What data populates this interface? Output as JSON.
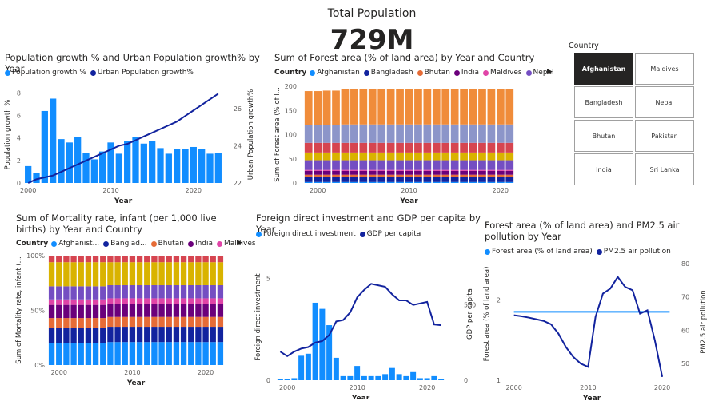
{
  "card": {
    "title": "Total Population",
    "value": "729M"
  },
  "slicer": {
    "title": "Country",
    "items": [
      "Afghanistan",
      "Maldives",
      "Bangladesh",
      "Nepal",
      "Bhutan",
      "Pakistan",
      "India",
      "Sri Lanka"
    ],
    "selected": "Afghanistan"
  },
  "colors": {
    "blue": "#118dff",
    "navy": "#12239e",
    "orange": "#e66c37",
    "purple": "#6b007b",
    "pink": "#e044a7",
    "violet": "#744ec2",
    "yellow": "#d9b300",
    "red": "#d64550"
  },
  "visual1": {
    "title": "Population growth % and Urban Population growth% by Year",
    "legend": [
      "Population growth %",
      "Urban Population growth%"
    ]
  },
  "visual2": {
    "title": "Sum of Forest area (% of land area) by Year and Country",
    "legend_title": "Country",
    "legend": [
      "Afghanistan",
      "Bangladesh",
      "Bhutan",
      "India",
      "Maldives",
      "Nepal"
    ]
  },
  "visual3": {
    "title": "Sum of Mortality rate, infant (per 1,000 live births) by Year and Country",
    "legend_title": "Country",
    "legend": [
      "Afghanist...",
      "Banglad...",
      "Bhutan",
      "India",
      "Maldives"
    ]
  },
  "visual4": {
    "title": "Foreign direct investment and GDP per capita by Year",
    "legend": [
      "Foreign direct investment",
      "GDP per capita"
    ]
  },
  "visual5": {
    "title": "Forest area (% of land area) and PM2.5 air pollution by Year",
    "legend": [
      "Forest area (% of land area)",
      "PM2.5 air pollution"
    ]
  },
  "chart_data": [
    {
      "type": "bar",
      "title": "Population growth % and Urban Population growth% by Year",
      "xlabel": "Year",
      "ylabel": "Population growth %",
      "y2label": "Urban Population growth%",
      "ylim": [
        0,
        8.6
      ],
      "y2lim": [
        22,
        27.2
      ],
      "yticks": [
        0,
        2,
        4,
        6,
        8
      ],
      "y2ticks": [
        22,
        24,
        26
      ],
      "xticks": [
        2000,
        2010,
        2020
      ],
      "x": [
        2000,
        2001,
        2002,
        2003,
        2004,
        2005,
        2006,
        2007,
        2008,
        2009,
        2010,
        2011,
        2012,
        2013,
        2014,
        2015,
        2016,
        2017,
        2018,
        2019,
        2020,
        2021,
        2022,
        2023
      ],
      "series": [
        {
          "name": "Population growth %",
          "kind": "bar",
          "values": [
            1.5,
            0.9,
            6.4,
            7.5,
            3.9,
            3.6,
            4.1,
            2.7,
            2.1,
            2.8,
            3.6,
            2.6,
            3.7,
            4.1,
            3.5,
            3.7,
            3.1,
            2.6,
            3.0,
            3.0,
            3.2,
            3.0,
            2.6,
            2.7
          ]
        },
        {
          "name": "Urban Population growth%",
          "kind": "line",
          "axis": "right",
          "values": [
            22.0,
            22.2,
            22.3,
            22.4,
            22.6,
            22.8,
            23.0,
            23.2,
            23.4,
            23.6,
            23.8,
            24.0,
            24.1,
            24.3,
            24.5,
            24.7,
            24.9,
            25.1,
            25.3,
            25.6,
            25.9,
            26.2,
            26.5,
            26.8
          ]
        }
      ]
    },
    {
      "type": "bar",
      "stacked": true,
      "title": "Sum of Forest area (% of land area) by Year and Country",
      "xlabel": "Year",
      "ylabel": "Sum of Forest area (% of l...",
      "ylim": [
        0,
        200
      ],
      "yticks": [
        0,
        50,
        100,
        150,
        200
      ],
      "xticks": [
        2000,
        2010,
        2020
      ],
      "x": [
        1999,
        2000,
        2001,
        2002,
        2003,
        2004,
        2005,
        2006,
        2007,
        2008,
        2009,
        2010,
        2011,
        2012,
        2013,
        2014,
        2015,
        2016,
        2017,
        2018,
        2019,
        2020,
        2021
      ],
      "series": [
        {
          "name": "Afghanistan",
          "values": [
            2,
            2,
            2,
            2,
            2,
            2,
            2,
            2,
            2,
            2,
            2,
            2,
            2,
            2,
            2,
            2,
            2,
            2,
            2,
            2,
            2,
            2,
            2
          ]
        },
        {
          "name": "Bangladesh",
          "values": [
            11,
            11,
            11,
            11,
            11,
            11,
            11,
            11,
            11,
            11,
            11,
            11,
            11,
            11,
            11,
            11,
            11,
            11,
            11,
            11,
            11,
            11,
            11
          ]
        },
        {
          "name": "Bhutan",
          "values": [
            4,
            4,
            4,
            4,
            4,
            4,
            4,
            4,
            4,
            4,
            4,
            4,
            4,
            4,
            4,
            4,
            4,
            4,
            4,
            4,
            4,
            4,
            4
          ]
        },
        {
          "name": "India",
          "values": [
            8,
            8,
            8,
            8,
            8,
            8,
            8,
            8,
            8,
            8,
            8,
            8,
            8,
            8,
            8,
            8,
            8,
            8,
            8,
            8,
            8,
            8,
            8
          ]
        },
        {
          "name": "Maldives",
          "values": [
            2,
            2,
            2,
            2,
            2,
            2,
            2,
            2,
            2,
            2,
            2,
            2,
            2,
            2,
            2,
            2,
            2,
            2,
            2,
            2,
            2,
            2,
            2
          ]
        },
        {
          "name": "Nepal",
          "values": [
            20,
            20,
            20,
            20,
            20,
            20,
            20,
            20,
            20,
            20,
            20,
            20,
            20,
            20,
            20,
            20,
            20,
            20,
            20,
            20,
            20,
            20,
            20
          ]
        },
        {
          "name": "Pakistan",
          "values": [
            16,
            16,
            16,
            16,
            16,
            16,
            16,
            16,
            16,
            16,
            16,
            16,
            16,
            16,
            16,
            16,
            16,
            16,
            16,
            16,
            16,
            16,
            16
          ]
        },
        {
          "name": "Sri Lanka",
          "values": [
            20,
            20,
            20,
            20,
            20,
            20,
            20,
            20,
            20,
            20,
            20,
            20,
            20,
            20,
            20,
            20,
            20,
            20,
            20,
            20,
            20,
            20,
            20
          ]
        },
        {
          "name": "",
          "values": [
            37,
            37,
            37,
            37,
            38,
            38,
            38,
            38,
            38,
            38,
            38,
            38,
            38,
            38,
            38,
            38,
            38,
            38,
            38,
            38,
            38,
            38,
            38
          ]
        },
        {
          "name": "",
          "values": [
            70,
            70,
            71,
            71,
            73,
            73,
            73,
            73,
            73,
            73,
            74,
            74,
            74,
            74,
            74,
            74,
            74,
            74,
            74,
            74,
            74,
            74,
            74
          ]
        }
      ]
    },
    {
      "type": "bar",
      "stacked": true,
      "percent": true,
      "title": "Sum of Mortality rate, infant (per 1,000 live births) by Year and Country",
      "xlabel": "Year",
      "ylabel": "Sum of Mortality rate, infant (...",
      "yticks": [
        "0%",
        "50%",
        "100%"
      ],
      "xticks": [
        2000,
        2010,
        2020
      ],
      "x": [
        1999,
        2000,
        2001,
        2002,
        2003,
        2004,
        2005,
        2006,
        2007,
        2008,
        2009,
        2010,
        2011,
        2012,
        2013,
        2014,
        2015,
        2016,
        2017,
        2018,
        2019,
        2020,
        2021,
        2022
      ],
      "series": [
        {
          "name": "Afghanist...",
          "values": [
            20,
            20,
            20,
            20,
            20,
            20,
            20,
            20,
            21,
            21,
            21,
            21,
            21,
            21,
            21,
            21,
            21,
            21,
            21,
            21,
            21,
            21,
            21,
            21
          ]
        },
        {
          "name": "Banglad...",
          "values": [
            14,
            14,
            14,
            14,
            14,
            14,
            14,
            14,
            14,
            14,
            14,
            14,
            14,
            14,
            14,
            14,
            14,
            14,
            14,
            14,
            14,
            14,
            14,
            14
          ]
        },
        {
          "name": "Bhutan",
          "values": [
            9,
            9,
            9,
            9,
            9,
            9,
            9,
            9,
            9,
            9,
            9,
            9,
            9,
            9,
            9,
            9,
            9,
            9,
            9,
            9,
            9,
            9,
            9,
            9
          ]
        },
        {
          "name": "India",
          "values": [
            12,
            12,
            12,
            12,
            12,
            12,
            12,
            12,
            12,
            12,
            12,
            12,
            12,
            12,
            12,
            12,
            12,
            12,
            12,
            12,
            12,
            12,
            12,
            12
          ]
        },
        {
          "name": "Maldives",
          "values": [
            5,
            5,
            5,
            5,
            5,
            5,
            5,
            5,
            5,
            5,
            5,
            5,
            5,
            5,
            5,
            5,
            5,
            5,
            5,
            5,
            5,
            5,
            5,
            5
          ]
        },
        {
          "name": "",
          "values": [
            12,
            12,
            12,
            12,
            12,
            12,
            12,
            12,
            12,
            12,
            12,
            12,
            12,
            12,
            12,
            12,
            12,
            12,
            12,
            12,
            12,
            12,
            12,
            12
          ]
        },
        {
          "name": "",
          "values": [
            22,
            22,
            22,
            22,
            22,
            22,
            22,
            22,
            21,
            21,
            21,
            21,
            21,
            21,
            21,
            21,
            21,
            21,
            21,
            21,
            21,
            21,
            21,
            21
          ]
        },
        {
          "name": "",
          "values": [
            6,
            6,
            6,
            6,
            6,
            6,
            6,
            6,
            6,
            6,
            6,
            6,
            6,
            6,
            6,
            6,
            6,
            6,
            6,
            6,
            6,
            6,
            6,
            6
          ]
        }
      ]
    },
    {
      "type": "bar",
      "title": "Foreign direct investment and GDP per capita by Year",
      "xlabel": "Year",
      "ylabel": "Foreign direct investment",
      "y2label": "GDP per capita",
      "ylim": [
        0,
        6.5
      ],
      "y2lim": [
        0,
        880
      ],
      "yticks": [
        0,
        5
      ],
      "y2ticks": [
        0,
        500
      ],
      "xticks": [
        2000,
        2010,
        2020
      ],
      "x": [
        1999,
        2000,
        2001,
        2002,
        2003,
        2004,
        2005,
        2006,
        2007,
        2008,
        2009,
        2010,
        2011,
        2012,
        2013,
        2014,
        2015,
        2016,
        2017,
        2018,
        2019,
        2020,
        2021,
        2022
      ],
      "series": [
        {
          "name": "Foreign direct investment",
          "kind": "bar",
          "values": [
            0.0,
            0.0,
            0.1,
            1.2,
            1.3,
            3.8,
            3.5,
            2.7,
            1.1,
            0.2,
            0.2,
            0.7,
            0.2,
            0.2,
            0.2,
            0.3,
            0.6,
            0.3,
            0.2,
            0.4,
            0.1,
            0.1,
            0.2,
            0.0
          ]
        },
        {
          "name": "GDP per capita",
          "kind": "line",
          "axis": "right",
          "values": [
            190,
            160,
            190,
            210,
            220,
            250,
            260,
            300,
            390,
            400,
            450,
            550,
            600,
            640,
            630,
            620,
            570,
            530,
            530,
            500,
            510,
            520,
            370,
            365
          ]
        }
      ]
    },
    {
      "type": "line",
      "title": "Forest area (% of land area) and PM2.5 air pollution by Year",
      "xlabel": "Year",
      "ylabel": "Forest area (% of land area)",
      "y2label": "PM2.5 air pollution",
      "ylim": [
        1.0,
        2.45
      ],
      "y2lim": [
        45,
        80
      ],
      "yticks": [
        1,
        2
      ],
      "y2ticks": [
        50,
        60,
        70,
        80
      ],
      "xticks": [
        2000,
        2010,
        2020
      ],
      "x": [
        2000,
        2001,
        2002,
        2003,
        2004,
        2005,
        2006,
        2007,
        2008,
        2009,
        2010,
        2011,
        2012,
        2013,
        2014,
        2015,
        2016,
        2017,
        2018,
        2019,
        2020,
        2021
      ],
      "series": [
        {
          "name": "Forest area (% of land area)",
          "axis": "left",
          "values": [
            1.85,
            1.85,
            1.85,
            1.85,
            1.85,
            1.85,
            1.85,
            1.85,
            1.85,
            1.85,
            1.85,
            1.85,
            1.85,
            1.85,
            1.85,
            1.85,
            1.85,
            1.85,
            1.85,
            1.85,
            1.85,
            1.85
          ]
        },
        {
          "name": "PM2.5 air pollution",
          "axis": "right",
          "values": [
            64.5,
            64.2,
            63.8,
            63.3,
            62.8,
            61.8,
            59.0,
            55.0,
            52.0,
            50.0,
            49.0,
            64.0,
            71.0,
            72.5,
            76.0,
            73.0,
            72.0,
            65.0,
            66.0,
            57.0,
            46.0,
            null
          ]
        }
      ]
    }
  ]
}
